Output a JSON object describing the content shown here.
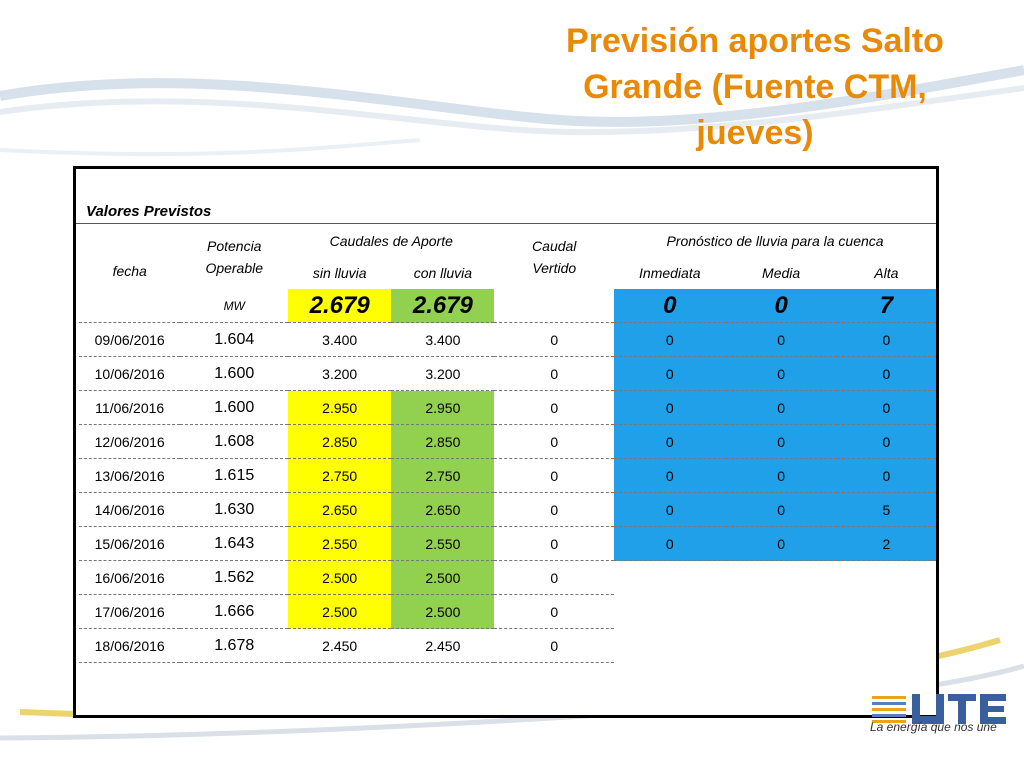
{
  "title": "Previsión aportes Salto Grande (Fuente CTM, jueves)",
  "section_label": "Valores Previstos",
  "headers": {
    "fecha": "fecha",
    "potencia": "Potencia Operable",
    "caudales": "Caudales de Aporte",
    "sin_lluvia": "sin lluvia",
    "con_lluvia": "con lluvia",
    "caudal_vertido": "Caudal Vertido",
    "pronostico": "Pronóstico de lluvia para la cuenca",
    "inmediata": "Inmediata",
    "media": "Media",
    "alta": "Alta"
  },
  "summary": {
    "unit": "MW",
    "sin_lluvia": "2.679",
    "con_lluvia": "2.679",
    "inmediata": "0",
    "media": "0",
    "alta": "7"
  },
  "rows": [
    {
      "fecha": "09/06/2016",
      "potencia": "1.604",
      "sin": "3.400",
      "con": "3.400",
      "vertido": "0",
      "inm": "0",
      "med": "0",
      "alta": "0"
    },
    {
      "fecha": "10/06/2016",
      "potencia": "1.600",
      "sin": "3.200",
      "con": "3.200",
      "vertido": "0",
      "inm": "0",
      "med": "0",
      "alta": "0"
    },
    {
      "fecha": "11/06/2016",
      "potencia": "1.600",
      "sin": "2.950",
      "con": "2.950",
      "vertido": "0",
      "inm": "0",
      "med": "0",
      "alta": "0"
    },
    {
      "fecha": "12/06/2016",
      "potencia": "1.608",
      "sin": "2.850",
      "con": "2.850",
      "vertido": "0",
      "inm": "0",
      "med": "0",
      "alta": "0"
    },
    {
      "fecha": "13/06/2016",
      "potencia": "1.615",
      "sin": "2.750",
      "con": "2.750",
      "vertido": "0",
      "inm": "0",
      "med": "0",
      "alta": "0"
    },
    {
      "fecha": "14/06/2016",
      "potencia": "1.630",
      "sin": "2.650",
      "con": "2.650",
      "vertido": "0",
      "inm": "0",
      "med": "0",
      "alta": "5"
    },
    {
      "fecha": "15/06/2016",
      "potencia": "1.643",
      "sin": "2.550",
      "con": "2.550",
      "vertido": "0",
      "inm": "0",
      "med": "0",
      "alta": "2"
    },
    {
      "fecha": "16/06/2016",
      "potencia": "1.562",
      "sin": "2.500",
      "con": "2.500",
      "vertido": "0",
      "inm": "",
      "med": "",
      "alta": ""
    },
    {
      "fecha": "17/06/2016",
      "potencia": "1.666",
      "sin": "2.500",
      "con": "2.500",
      "vertido": "0",
      "inm": "",
      "med": "",
      "alta": ""
    },
    {
      "fecha": "18/06/2016",
      "potencia": "1.678",
      "sin": "2.450",
      "con": "2.450",
      "vertido": "0",
      "inm": "",
      "med": "",
      "alta": ""
    }
  ],
  "logo": {
    "tagline": "La energía que nos une",
    "wordmark": "UTE"
  },
  "colors": {
    "title": "#e88a06",
    "yellow": "#ffff00",
    "green": "#92d050",
    "blue": "#1fa0e8"
  }
}
